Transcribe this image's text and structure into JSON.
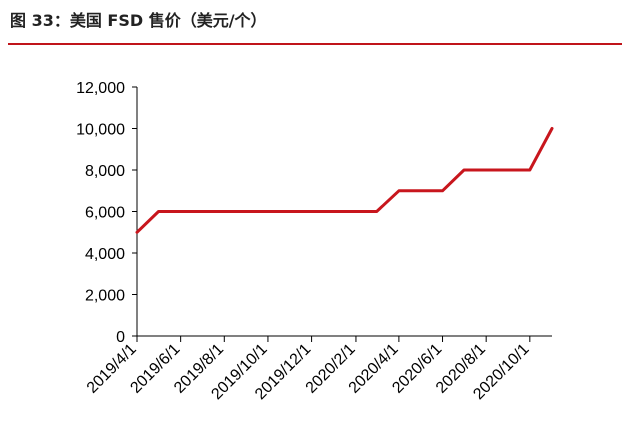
{
  "figure": {
    "title": "图 33：美国 FSD 售价（美元/个）"
  },
  "colors": {
    "title_rule": "#c0141a",
    "line": "#c8161d",
    "axis": "#000000"
  },
  "chart_data": {
    "type": "line",
    "title": "图 33：美国 FSD 售价（美元/个）",
    "xlabel": "",
    "ylabel": "",
    "ylim": [
      0,
      12000
    ],
    "y_ticks": [
      0,
      2000,
      4000,
      6000,
      8000,
      10000,
      12000
    ],
    "y_tick_labels": [
      "0",
      "2,000",
      "4,000",
      "6,000",
      "8,000",
      "10,000",
      "12,000"
    ],
    "x_tick_labels": [
      "2019/4/1",
      "2019/6/1",
      "2019/8/1",
      "2019/10/1",
      "2019/12/1",
      "2020/2/1",
      "2020/4/1",
      "2020/6/1",
      "2020/8/1",
      "2020/10/1"
    ],
    "grid": false,
    "legend": "none",
    "series": [
      {
        "points": [
          {
            "x": "2019/4/1",
            "y": 5000
          },
          {
            "x": "2019/5/1",
            "y": 6000
          },
          {
            "x": "2020/2/1",
            "y": 6000
          },
          {
            "x": "2020/3/1",
            "y": 6000
          },
          {
            "x": "2020/4/1",
            "y": 7000
          },
          {
            "x": "2020/5/1",
            "y": 7000
          },
          {
            "x": "2020/6/1",
            "y": 7000
          },
          {
            "x": "2020/7/1",
            "y": 8000
          },
          {
            "x": "2020/10/1",
            "y": 8000
          },
          {
            "x": "2020/11/1",
            "y": 10000
          }
        ]
      }
    ]
  }
}
